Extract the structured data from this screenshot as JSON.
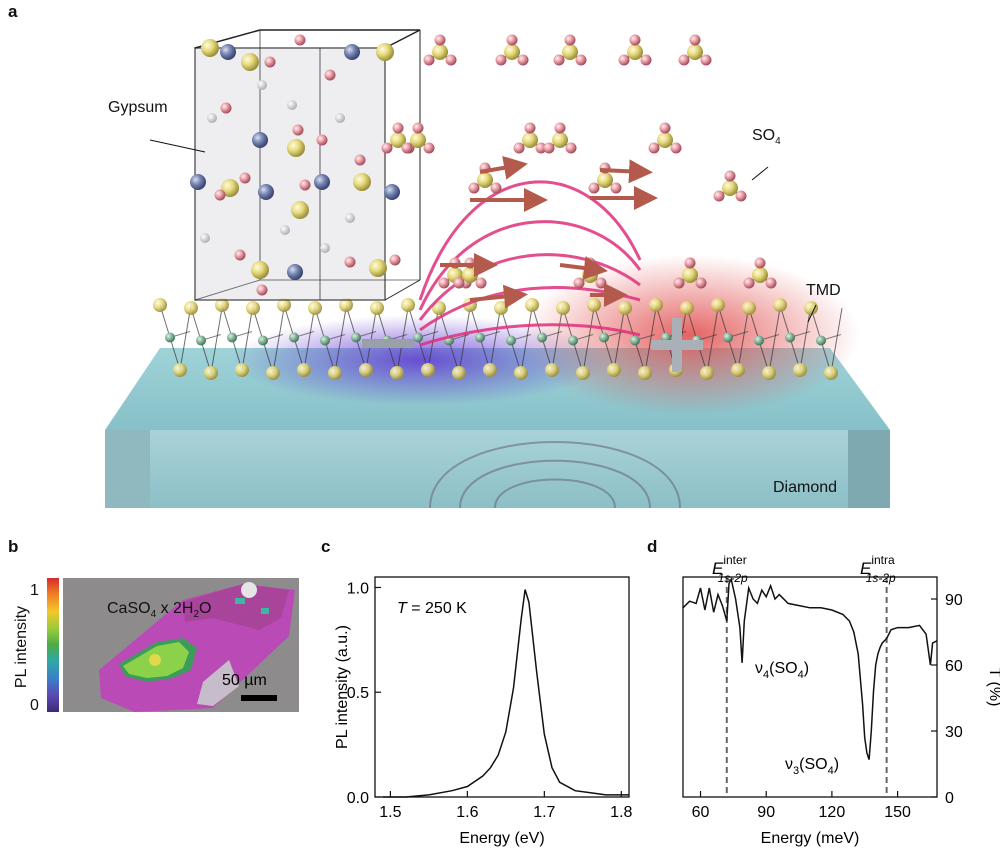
{
  "panels": {
    "a": {
      "letter": "a",
      "labels": {
        "gypsum": "Gypsum",
        "so4": "SO",
        "so4_sub": "4",
        "tmd": "TMD",
        "diamond": "Diamond",
        "minus": "−",
        "plus": "+"
      }
    },
    "b": {
      "letter": "b",
      "colorbar_label": "PL intensity",
      "colorbar_max": "1",
      "colorbar_min": "0",
      "formula": "CaSO",
      "formula_sub1": "4",
      "formula_mid": " x 2H",
      "formula_sub2": "2",
      "formula_end": "O",
      "scalebar": "50 µm"
    },
    "c": {
      "letter": "c",
      "annotation_T": "T",
      "annotation_rest": " = 250 K"
    },
    "d": {
      "letter": "d",
      "marker_inter": "E",
      "marker_inter_sup": "inter",
      "marker_inter_sub": "1s-2p",
      "marker_intra": "E",
      "marker_intra_sup": "intra",
      "marker_intra_sub": "1s-2p",
      "nu4": "ν",
      "nu4_sub": "4",
      "nu4_rest": "(SO",
      "nu4_sub2": "4",
      "nu4_end": ")",
      "nu3": "ν",
      "nu3_sub": "3",
      "nu3_rest": "(SO",
      "nu3_sub2": "4",
      "nu3_end": ")"
    }
  },
  "chart_data": [
    {
      "type": "line",
      "xlabel": "Energy (eV)",
      "ylabel": "PL intensity (a.u.)",
      "xlim": [
        1.48,
        1.81
      ],
      "ylim": [
        0,
        1.05
      ],
      "xticks": [
        "1.5",
        "1.6",
        "1.7",
        "1.8"
      ],
      "yticks": [
        "0.0",
        "0.5",
        "1.0"
      ],
      "series": [
        {
          "x": [
            1.49,
            1.52,
            1.55,
            1.58,
            1.6,
            1.62,
            1.63,
            1.64,
            1.65,
            1.66,
            1.67,
            1.675,
            1.68,
            1.69,
            1.7,
            1.71,
            1.72,
            1.74,
            1.76,
            1.78,
            1.81
          ],
          "values": [
            0.0,
            0.0,
            0.01,
            0.03,
            0.05,
            0.1,
            0.14,
            0.2,
            0.31,
            0.52,
            0.85,
            0.99,
            0.93,
            0.6,
            0.3,
            0.14,
            0.07,
            0.03,
            0.02,
            0.01,
            0.01
          ]
        }
      ]
    },
    {
      "type": "line",
      "xlabel": "Energy (meV)",
      "ylabel": "T (%)",
      "xlim": [
        52,
        168
      ],
      "ylim": [
        0,
        100
      ],
      "xticks": [
        "60",
        "90",
        "120",
        "150"
      ],
      "yticks": [
        "0",
        "30",
        "60",
        "90"
      ],
      "markers_x": [
        72,
        145
      ],
      "series": [
        {
          "x": [
            52,
            55,
            58,
            60,
            62,
            64,
            66,
            68,
            70,
            72,
            73,
            74,
            76,
            78,
            79,
            80,
            82,
            84,
            86,
            88,
            90,
            92,
            94,
            96,
            100,
            105,
            110,
            115,
            120,
            125,
            128,
            130,
            132,
            134,
            135,
            136,
            137,
            138,
            139,
            140,
            141,
            142,
            143,
            145,
            147,
            150,
            155,
            160,
            163,
            165,
            166,
            168
          ],
          "values": [
            86,
            89,
            88,
            95,
            85,
            95,
            84,
            92,
            87,
            80,
            97,
            99,
            90,
            77,
            61,
            80,
            95,
            90,
            88,
            94,
            91,
            96,
            90,
            92,
            88,
            87,
            86,
            86,
            85,
            83,
            80,
            75,
            65,
            42,
            27,
            20,
            17,
            30,
            48,
            60,
            65,
            68,
            70,
            72,
            76,
            77,
            77,
            78,
            74,
            60,
            70,
            71
          ]
        }
      ]
    }
  ]
}
